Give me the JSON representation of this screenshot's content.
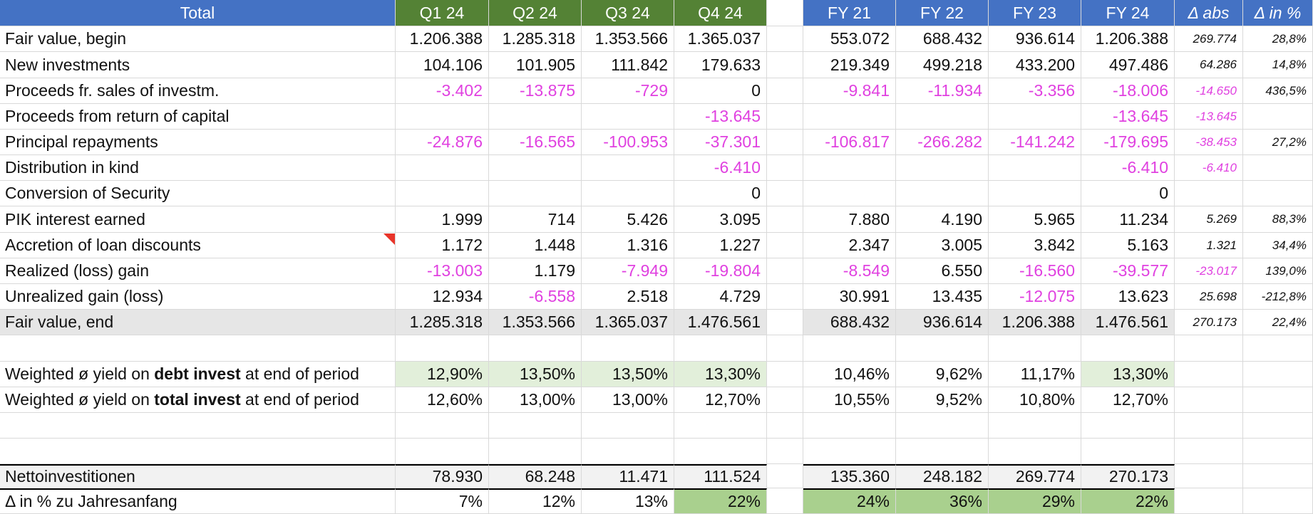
{
  "colors": {
    "blue": "#4472c4",
    "green": "#548235",
    "magenta": "#e040e0",
    "light_green": "#e2efda",
    "mid_green": "#a9d08e",
    "grey": "#e6e6e6",
    "light_grey": "#f2f2f2"
  },
  "header": {
    "title": "Total",
    "quarters": [
      "Q1 24",
      "Q2 24",
      "Q3 24",
      "Q4 24"
    ],
    "years": [
      "FY 21",
      "FY 22",
      "FY 23",
      "FY 24"
    ],
    "delta_abs": "Δ abs",
    "delta_pct": "Δ in %"
  },
  "rows": [
    {
      "label": "Fair value, begin",
      "q": [
        "1.206.388",
        "1.285.318",
        "1.353.566",
        "1.365.037"
      ],
      "fy": [
        "553.072",
        "688.432",
        "936.614",
        "1.206.388"
      ],
      "abs": "269.774",
      "pct": "28,8%"
    },
    {
      "label": "New investments",
      "q": [
        "104.106",
        "101.905",
        "111.842",
        "179.633"
      ],
      "fy": [
        "219.349",
        "499.218",
        "433.200",
        "497.486"
      ],
      "abs": "64.286",
      "pct": "14,8%"
    },
    {
      "label": "Proceeds fr. sales of investm.",
      "q": [
        "-3.402",
        "-13.875",
        "-729",
        "0"
      ],
      "fy": [
        "-9.841",
        "-11.934",
        "-3.356",
        "-18.006"
      ],
      "abs": "-14.650",
      "pct": "436,5%"
    },
    {
      "label": "Proceeds from return of capital",
      "q": [
        "",
        "",
        "",
        "-13.645"
      ],
      "fy": [
        "",
        "",
        "",
        "-13.645"
      ],
      "abs": "-13.645",
      "pct": ""
    },
    {
      "label": "Principal repayments",
      "q": [
        "-24.876",
        "-16.565",
        "-100.953",
        "-37.301"
      ],
      "fy": [
        "-106.817",
        "-266.282",
        "-141.242",
        "-179.695"
      ],
      "abs": "-38.453",
      "pct": "27,2%"
    },
    {
      "label": "Distribution in kind",
      "q": [
        "",
        "",
        "",
        "-6.410"
      ],
      "fy": [
        "",
        "",
        "",
        "-6.410"
      ],
      "abs": "-6.410",
      "pct": ""
    },
    {
      "label": "Conversion of Security",
      "q": [
        "",
        "",
        "",
        "0"
      ],
      "fy": [
        "",
        "",
        "",
        "0"
      ],
      "abs": "",
      "pct": ""
    },
    {
      "label": "PIK interest earned",
      "q": [
        "1.999",
        "714",
        "5.426",
        "3.095"
      ],
      "fy": [
        "7.880",
        "4.190",
        "5.965",
        "11.234"
      ],
      "abs": "5.269",
      "pct": "88,3%"
    },
    {
      "label": "Accretion of loan discounts",
      "q": [
        "1.172",
        "1.448",
        "1.316",
        "1.227"
      ],
      "fy": [
        "2.347",
        "3.005",
        "3.842",
        "5.163"
      ],
      "abs": "1.321",
      "pct": "34,4%"
    },
    {
      "label": "Realized (loss) gain",
      "q": [
        "-13.003",
        "1.179",
        "-7.949",
        "-19.804"
      ],
      "fy": [
        "-8.549",
        "6.550",
        "-16.560",
        "-39.577"
      ],
      "abs": "-23.017",
      "pct": "139,0%"
    },
    {
      "label": "Unrealized gain (loss)",
      "q": [
        "12.934",
        "-6.558",
        "2.518",
        "4.729"
      ],
      "fy": [
        "30.991",
        "13.435",
        "-12.075",
        "13.623"
      ],
      "abs": "25.698",
      "pct": "-212,8%"
    },
    {
      "label": "Fair value, end",
      "q": [
        "1.285.318",
        "1.353.566",
        "1.365.037",
        "1.476.561"
      ],
      "fy": [
        "688.432",
        "936.614",
        "1.206.388",
        "1.476.561"
      ],
      "abs": "270.173",
      "pct": "22,4%"
    }
  ],
  "yield_debt": {
    "pre": "Weighted ø yield on ",
    "bold": "debt invest",
    "post": " at end of period",
    "q": [
      "12,90%",
      "13,50%",
      "13,50%",
      "13,30%"
    ],
    "fy": [
      "10,46%",
      "9,62%",
      "11,17%",
      "13,30%"
    ]
  },
  "yield_total": {
    "pre": "Weighted ø yield on ",
    "bold": "total invest",
    "post": " at end of period",
    "q": [
      "12,60%",
      "13,00%",
      "13,00%",
      "12,70%"
    ],
    "fy": [
      "10,55%",
      "9,52%",
      "10,80%",
      "12,70%"
    ]
  },
  "net": {
    "label": "Nettoinvestitionen",
    "q": [
      "78.930",
      "68.248",
      "11.471",
      "111.524"
    ],
    "fy": [
      "135.360",
      "248.182",
      "269.774",
      "270.173"
    ]
  },
  "pct_start": {
    "label": "Δ in % zu Jahresanfang",
    "q": [
      "7%",
      "12%",
      "13%",
      "22%"
    ],
    "fy": [
      "24%",
      "36%",
      "29%",
      "22%"
    ]
  }
}
